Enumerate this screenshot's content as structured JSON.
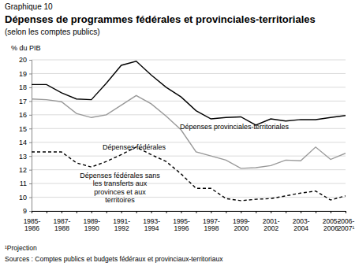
{
  "chart_data": {
    "type": "line",
    "figure_label": "Graphique 10",
    "title": "Dépenses de programmes fédérales et provinciales-territoriales",
    "subtitle": "(selon les comptes publics)",
    "ylabel": "% du PIB",
    "categories": [
      "1985-1986",
      null,
      "1987-1988",
      null,
      "1989-1990",
      null,
      "1991-1992",
      null,
      "1993-1994",
      null,
      "1995-1996",
      null,
      "1997-1998",
      null,
      "1999-2000",
      null,
      "2001-2002",
      null,
      "2003-2004",
      null,
      "2005-2006",
      "2006-2007¹"
    ],
    "series": [
      {
        "name": "Dépenses provinciales-territoriales",
        "color": "#000000",
        "line_style": "solid",
        "values": [
          18.2,
          18.2,
          17.6,
          17.15,
          17.1,
          18.3,
          19.6,
          19.9,
          18.9,
          18.0,
          17.3,
          16.3,
          15.7,
          15.8,
          15.85,
          15.25,
          15.7,
          15.55,
          15.65,
          15.65,
          15.8,
          15.95
        ]
      },
      {
        "name": "Dépenses fédérales",
        "color": "#999999",
        "line_style": "solid",
        "values": [
          17.15,
          17.1,
          16.95,
          16.1,
          15.8,
          16.0,
          16.7,
          17.4,
          16.8,
          15.9,
          14.9,
          13.3,
          13.0,
          12.7,
          12.1,
          12.15,
          12.3,
          12.7,
          12.65,
          13.65,
          12.75,
          13.2
        ]
      },
      {
        "name": "Dépenses fédérales sans les transferts aux provinces et aux territoires",
        "color": "#000000",
        "line_style": "dashed",
        "values": [
          13.3,
          13.3,
          13.3,
          12.5,
          12.2,
          12.6,
          13.1,
          13.65,
          13.1,
          12.6,
          11.7,
          10.65,
          10.65,
          9.9,
          9.75,
          9.85,
          9.9,
          10.1,
          10.3,
          10.45,
          9.8,
          10.1
        ]
      }
    ],
    "ylim": [
      9,
      20
    ],
    "yticks": [
      9,
      10,
      11,
      12,
      13,
      14,
      15,
      16,
      17,
      18,
      19,
      20
    ],
    "grid": true,
    "footnotes": [
      "¹Projection",
      "Sources : Comptes publics et budgets fédéraux et provinciaux-territoriaux"
    ]
  }
}
